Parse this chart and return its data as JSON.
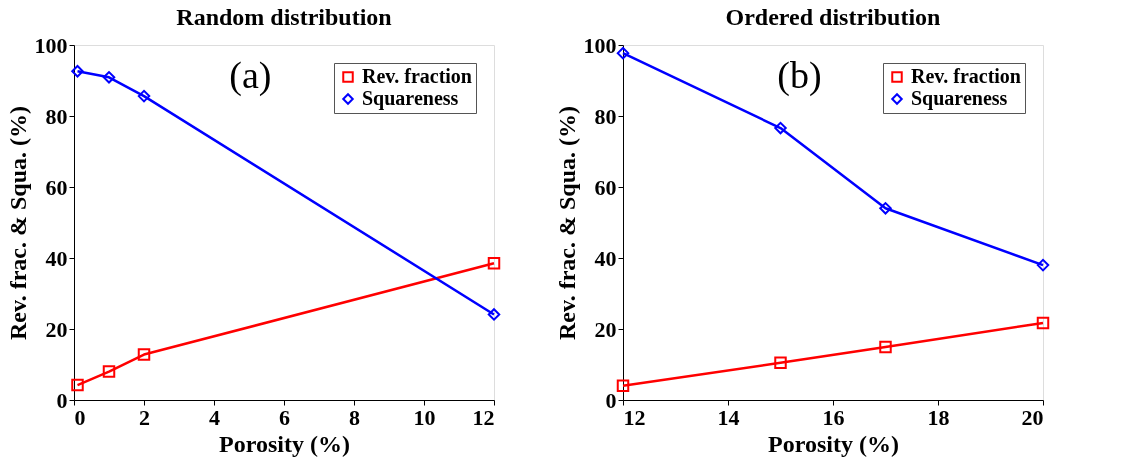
{
  "chart_data": [
    {
      "type": "line",
      "title": "Random distribution",
      "xlabel": "Porosity (%)",
      "ylabel": "Rev. frac. & Squa. (%)",
      "annotations": [
        "(a)"
      ],
      "x": [
        0.1,
        1,
        2,
        12
      ],
      "xlim": [
        0,
        12
      ],
      "xticks": [
        0,
        2,
        4,
        6,
        8,
        10,
        12
      ],
      "ylim": [
        0,
        100
      ],
      "yticks": [
        0,
        20,
        40,
        60,
        80,
        100
      ],
      "grid": false,
      "legend": "top right",
      "line_style": "solid",
      "series": [
        {
          "name": "Rev. fraction",
          "color": "#ff0000",
          "marker": "square",
          "values": [
            4.2,
            8.0,
            12.8,
            38.5
          ]
        },
        {
          "name": "Squareness",
          "color": "#0000ff",
          "marker": "diamond",
          "values": [
            92.6,
            90.9,
            85.6,
            24.1
          ]
        }
      ]
    },
    {
      "type": "line",
      "title": "Ordered distribution",
      "xlabel": "Porosity (%)",
      "ylabel": "Rev. frac. & Squa. (%)",
      "annotations": [
        "(b)"
      ],
      "x": [
        12,
        15,
        17,
        20
      ],
      "xlim": [
        12,
        20
      ],
      "xticks": [
        12,
        14,
        16,
        18,
        20
      ],
      "ylim": [
        0,
        100
      ],
      "yticks": [
        0,
        20,
        40,
        60,
        80,
        100
      ],
      "grid": false,
      "legend": "top right",
      "line_style": "solid",
      "series": [
        {
          "name": "Rev. fraction",
          "color": "#ff0000",
          "marker": "square",
          "values": [
            4.0,
            10.5,
            14.9,
            21.7
          ]
        },
        {
          "name": "Squareness",
          "color": "#0000ff",
          "marker": "diamond",
          "values": [
            97.7,
            76.6,
            54.0,
            38.0
          ]
        }
      ]
    }
  ]
}
